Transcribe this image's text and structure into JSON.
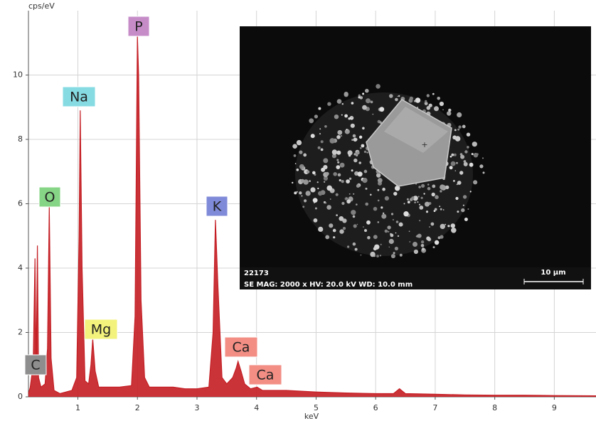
{
  "chart_data": {
    "type": "area",
    "y_label": "cps/eV",
    "x_label": "keV",
    "color": "#c41e24",
    "grid": true,
    "xlim": [
      0.17,
      9.7
    ],
    "xticks": [
      1,
      2,
      3,
      4,
      5,
      6,
      7,
      8,
      9
    ],
    "ylim": [
      0,
      12
    ],
    "yticks": [
      0,
      2,
      4,
      6,
      8,
      10
    ],
    "x": [
      0.17,
      0.2,
      0.25,
      0.28,
      0.3,
      0.32,
      0.34,
      0.38,
      0.45,
      0.49,
      0.52,
      0.55,
      0.6,
      0.7,
      0.8,
      0.9,
      0.98,
      1.02,
      1.04,
      1.07,
      1.12,
      1.18,
      1.22,
      1.25,
      1.29,
      1.35,
      1.5,
      1.7,
      1.9,
      1.96,
      2.0,
      2.02,
      2.06,
      2.12,
      2.2,
      2.4,
      2.6,
      2.8,
      3.0,
      3.2,
      3.27,
      3.31,
      3.35,
      3.42,
      3.5,
      3.6,
      3.66,
      3.69,
      3.74,
      3.8,
      3.9,
      4.01,
      4.1,
      4.3,
      4.5,
      5.0,
      5.5,
      6.0,
      6.3,
      6.4,
      6.5,
      7.0,
      7.5,
      8.0,
      8.5,
      9.0,
      9.7
    ],
    "values": [
      0.1,
      0.3,
      1.0,
      4.3,
      0.8,
      4.7,
      0.6,
      0.3,
      0.4,
      1.5,
      5.9,
      1.2,
      0.2,
      0.1,
      0.15,
      0.2,
      0.6,
      5.0,
      8.9,
      4.0,
      0.5,
      0.4,
      1.0,
      1.8,
      0.8,
      0.3,
      0.3,
      0.3,
      0.35,
      2.5,
      11.2,
      10.0,
      3.0,
      0.6,
      0.3,
      0.3,
      0.3,
      0.25,
      0.25,
      0.3,
      2.0,
      5.5,
      3.5,
      0.6,
      0.4,
      0.6,
      0.9,
      1.1,
      0.8,
      0.4,
      0.25,
      0.3,
      0.2,
      0.2,
      0.2,
      0.15,
      0.12,
      0.1,
      0.1,
      0.25,
      0.1,
      0.08,
      0.06,
      0.05,
      0.05,
      0.04,
      0.03
    ],
    "annotations": [
      {
        "text": "C",
        "color": "#8e8e8e"
      },
      {
        "text": "O",
        "color": "#86d486"
      },
      {
        "text": "Na",
        "color": "#86dbe3"
      },
      {
        "text": "Mg",
        "color": "#f2f27c"
      },
      {
        "text": "P",
        "color": "#c68cc8"
      },
      {
        "text": "K",
        "color": "#7f8ad8"
      },
      {
        "text": "Ca",
        "color": "#f28e84"
      },
      {
        "text": "Ca",
        "color": "#f28e84"
      }
    ],
    "inset": {
      "id": "22173",
      "info": "SE  MAG: 2000 x  HV: 20.0 kV  WD: 10.0 mm",
      "scale": "10 µm"
    }
  }
}
